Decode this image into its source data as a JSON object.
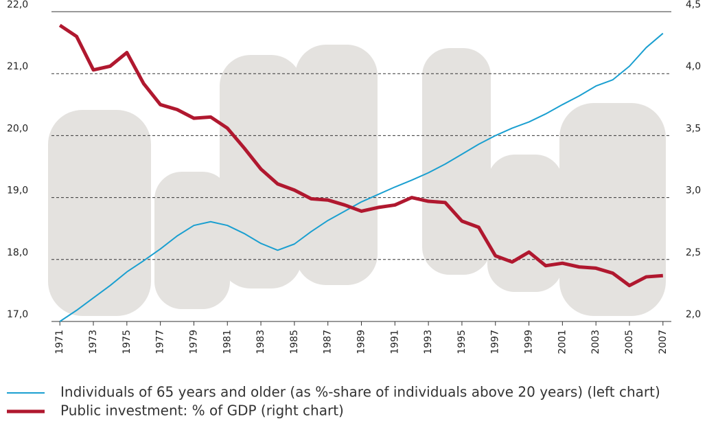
{
  "chart_data": {
    "type": "line",
    "x": [
      1971,
      1972,
      1973,
      1974,
      1975,
      1976,
      1977,
      1978,
      1979,
      1980,
      1981,
      1982,
      1983,
      1984,
      1985,
      1986,
      1987,
      1988,
      1989,
      1990,
      1991,
      1992,
      1993,
      1994,
      1995,
      1996,
      1997,
      1998,
      1999,
      2000,
      2001,
      2002,
      2003,
      2004,
      2005,
      2006,
      2007
    ],
    "xlim": [
      1970.5,
      2007.5
    ],
    "xticks": [
      1971,
      1973,
      1975,
      1977,
      1979,
      1981,
      1983,
      1985,
      1987,
      1989,
      1991,
      1993,
      1995,
      1997,
      1999,
      2001,
      2003,
      2005,
      2007
    ],
    "ylim": [
      17,
      22
    ],
    "yticks": [
      {
        "value": 17,
        "label": "17,0"
      },
      {
        "value": 18,
        "label": "18,0"
      },
      {
        "value": 19,
        "label": "19,0"
      },
      {
        "value": 20,
        "label": "20,0"
      },
      {
        "value": 21,
        "label": "21,0"
      },
      {
        "value": 22,
        "label": "22,0"
      }
    ],
    "y2lim": [
      2,
      4.5
    ],
    "y2ticks": [
      {
        "value": 2,
        "label": "2,0"
      },
      {
        "value": 2.5,
        "label": "2,5"
      },
      {
        "value": 3,
        "label": "3,0"
      },
      {
        "value": 3.5,
        "label": "3,5"
      },
      {
        "value": 4,
        "label": "4,0"
      },
      {
        "value": 4.5,
        "label": "4,5"
      }
    ],
    "grid": true,
    "series": [
      {
        "name": "Individuals of 65 years and older (as %-share of individuals above 20 years) (left chart)",
        "color": "#1a9fd0",
        "values": [
          17.0,
          17.18,
          17.38,
          17.58,
          17.8,
          17.98,
          18.17,
          18.38,
          18.55,
          18.61,
          18.55,
          18.42,
          18.26,
          18.15,
          18.25,
          18.45,
          18.63,
          18.78,
          18.93,
          19.05,
          19.17,
          19.28,
          19.4,
          19.54,
          19.7,
          19.86,
          20.0,
          20.12,
          20.22,
          20.35,
          20.5,
          20.64,
          20.8,
          20.9,
          21.12,
          21.42,
          21.65
        ]
      },
      {
        "name": "Public investment: % of GDP (right chart)",
        "color": "#b0182f",
        "axis": "y2",
        "values": [
          4.39,
          4.3,
          4.03,
          4.06,
          4.17,
          3.92,
          3.75,
          3.71,
          3.64,
          3.65,
          3.56,
          3.4,
          3.23,
          3.11,
          3.06,
          2.99,
          2.98,
          2.94,
          2.89,
          2.92,
          2.94,
          3.0,
          2.97,
          2.96,
          2.81,
          2.76,
          2.53,
          2.48,
          2.56,
          2.45,
          2.47,
          2.44,
          2.43,
          2.39,
          2.29,
          2.36,
          2.37
        ]
      }
    ]
  }
}
